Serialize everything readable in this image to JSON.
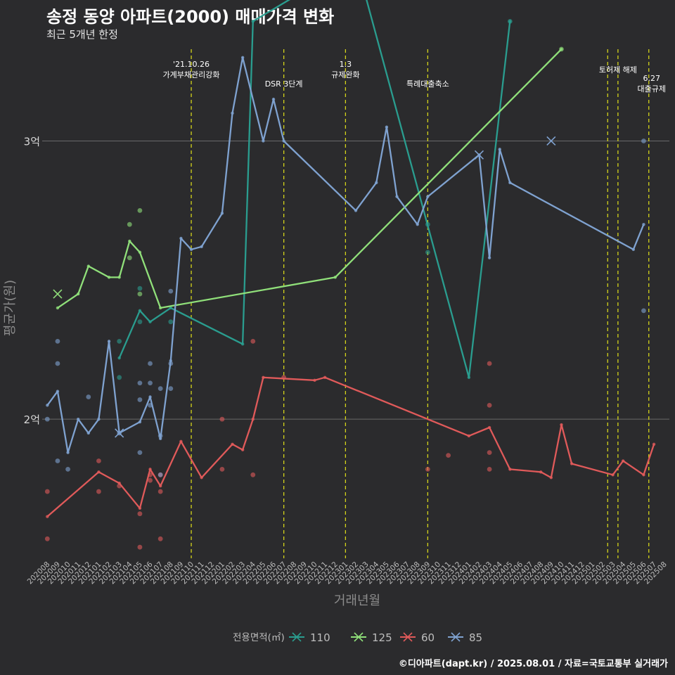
{
  "title": "송정 동양 아파트(2000) 매매가격 변화",
  "subtitle": "최근 5개년 한정",
  "footer": "©디아파트(dapt.kr) / 2025.08.01 / 자료=국토교통부 실거래가",
  "chart_data": {
    "type": "line",
    "xlabel": "거래년월",
    "ylabel": "평균가(원)",
    "y_unit": "원",
    "ylim": [
      150000000,
      335000000
    ],
    "yticks": [
      {
        "value": 200000000,
        "label": "2억"
      },
      {
        "value": 300000000,
        "label": "3억"
      }
    ],
    "grid": "horizontal",
    "months": [
      "202008",
      "202009",
      "202010",
      "202011",
      "202012",
      "202101",
      "202102",
      "202103",
      "202104",
      "202105",
      "202106",
      "202107",
      "202108",
      "202109",
      "202110",
      "202111",
      "202112",
      "202201",
      "202202",
      "202203",
      "202204",
      "202205",
      "202206",
      "202207",
      "202208",
      "202209",
      "202210",
      "202211",
      "202212",
      "202301",
      "202302",
      "202303",
      "202304",
      "202305",
      "202306",
      "202307",
      "202308",
      "202309",
      "202310",
      "202311",
      "202312",
      "202401",
      "202402",
      "202403",
      "202404",
      "202405",
      "202406",
      "202407",
      "202408",
      "202409",
      "202410",
      "202411",
      "202412",
      "202501",
      "202502",
      "202503",
      "202504",
      "202505",
      "202506",
      "202507",
      "202508"
    ],
    "events": [
      {
        "x": "202110",
        "label": [
          "'21.10.26",
          "가계부채관리강화"
        ]
      },
      {
        "x": "202207",
        "label": [
          "DSR 3단계"
        ]
      },
      {
        "x": "202301",
        "label": [
          "1.3",
          "규제완화"
        ]
      },
      {
        "x": "202309",
        "label": [
          "특례대출축소"
        ]
      },
      {
        "x": "202502.5",
        "label": []
      },
      {
        "x": "202503.5",
        "label": [
          "토허제 해제"
        ]
      },
      {
        "x": "202506.5",
        "label": [
          "6.27",
          "대출규제"
        ]
      }
    ],
    "legend": {
      "title": "전용면적(㎡)",
      "position": "bottom"
    },
    "series": [
      {
        "name": "110",
        "color": "#2a9d8f",
        "line": [
          [
            "202103",
            222000000
          ],
          [
            "202105",
            239000000
          ],
          [
            "202106",
            235000000
          ],
          [
            "202108",
            240000000
          ],
          [
            "202203",
            227000000
          ],
          [
            "202204",
            343000000
          ],
          [
            "202302",
            365000000
          ],
          [
            "202401",
            215000000
          ],
          [
            "202405",
            343000000
          ]
        ],
        "points": [
          [
            "202103",
            228000000
          ],
          [
            "202103",
            215000000
          ],
          [
            "202105",
            247000000
          ],
          [
            "202105",
            235000000
          ],
          [
            "202108",
            235000000
          ],
          [
            "202309",
            270000000
          ],
          [
            "202309",
            260000000
          ],
          [
            "202405",
            343000000
          ]
        ],
        "crosses": []
      },
      {
        "name": "125",
        "color": "#90e07a",
        "line": [
          [
            "202009",
            240000000
          ],
          [
            "202011",
            245000000
          ],
          [
            "202012",
            255000000
          ],
          [
            "202102",
            251000000
          ],
          [
            "202103",
            251000000
          ],
          [
            "202104",
            264000000
          ],
          [
            "202105",
            260000000
          ],
          [
            "202107",
            240000000
          ],
          [
            "202212",
            251000000
          ],
          [
            "202410",
            333000000
          ]
        ],
        "points": [
          [
            "202104",
            270000000
          ],
          [
            "202104",
            258000000
          ],
          [
            "202105",
            275000000
          ],
          [
            "202105",
            245000000
          ],
          [
            "202410",
            333000000
          ]
        ],
        "crosses": [
          [
            "202009",
            245000000
          ]
        ]
      },
      {
        "name": "60",
        "color": "#e05a5a",
        "line": [
          [
            "202008",
            165000000
          ],
          [
            "202101",
            181000000
          ],
          [
            "202103",
            177000000
          ],
          [
            "202105",
            168000000
          ],
          [
            "202106",
            182000000
          ],
          [
            "202107",
            176000000
          ],
          [
            "202109",
            192000000
          ],
          [
            "202111",
            179000000
          ],
          [
            "202202",
            191000000
          ],
          [
            "202203",
            189000000
          ],
          [
            "202204",
            200000000
          ],
          [
            "202205",
            215000000
          ],
          [
            "202210",
            214000000
          ],
          [
            "202211",
            215000000
          ],
          [
            "202401",
            194000000
          ],
          [
            "202403",
            197000000
          ],
          [
            "202405",
            182000000
          ],
          [
            "202408",
            181000000
          ],
          [
            "202409",
            179000000
          ],
          [
            "202410",
            198000000
          ],
          [
            "202411",
            184000000
          ],
          [
            "202503",
            180000000
          ],
          [
            "202504",
            185000000
          ],
          [
            "202506",
            180000000
          ],
          [
            "202507",
            191000000
          ]
        ],
        "points": [
          [
            "202008",
            174000000
          ],
          [
            "202008",
            157000000
          ],
          [
            "202101",
            185000000
          ],
          [
            "202101",
            174000000
          ],
          [
            "202103",
            176000000
          ],
          [
            "202105",
            166000000
          ],
          [
            "202105",
            154000000
          ],
          [
            "202106",
            180000000
          ],
          [
            "202106",
            178000000
          ],
          [
            "202107",
            180000000
          ],
          [
            "202107",
            174000000
          ],
          [
            "202107",
            157000000
          ],
          [
            "202201",
            200000000
          ],
          [
            "202201",
            182000000
          ],
          [
            "202204",
            228000000
          ],
          [
            "202204",
            180000000
          ],
          [
            "202207",
            215000000
          ],
          [
            "202309",
            182000000
          ],
          [
            "202311",
            187000000
          ],
          [
            "202403",
            220000000
          ],
          [
            "202403",
            205000000
          ],
          [
            "202403",
            188000000
          ],
          [
            "202403",
            182000000
          ]
        ],
        "crosses": []
      },
      {
        "name": "85",
        "color": "#7fa2d0",
        "line": [
          [
            "202008",
            205000000
          ],
          [
            "202009",
            210000000
          ],
          [
            "202010",
            188000000
          ],
          [
            "202011",
            200000000
          ],
          [
            "202012",
            195000000
          ],
          [
            "202101",
            200000000
          ],
          [
            "202102",
            228000000
          ],
          [
            "202103",
            195000000
          ],
          [
            "202105",
            199000000
          ],
          [
            "202106",
            208000000
          ],
          [
            "202107",
            193000000
          ],
          [
            "202108",
            221000000
          ],
          [
            "202109",
            265000000
          ],
          [
            "202110",
            261000000
          ],
          [
            "202111",
            262000000
          ],
          [
            "202201",
            274000000
          ],
          [
            "202202",
            310000000
          ],
          [
            "202203",
            330000000
          ],
          [
            "202205",
            300000000
          ],
          [
            "202206",
            315000000
          ],
          [
            "202207",
            300000000
          ],
          [
            "202302",
            275000000
          ],
          [
            "202304",
            285000000
          ],
          [
            "202305",
            305000000
          ],
          [
            "202306",
            280000000
          ],
          [
            "202308",
            270000000
          ],
          [
            "202309",
            280000000
          ],
          [
            "202402",
            295000000
          ],
          [
            "202403",
            258000000
          ],
          [
            "202404",
            297000000
          ],
          [
            "202405",
            285000000
          ],
          [
            "202505",
            261000000
          ],
          [
            "202506",
            270000000
          ]
        ],
        "points": [
          [
            "202008",
            200000000
          ],
          [
            "202009",
            228000000
          ],
          [
            "202009",
            220000000
          ],
          [
            "202009",
            185000000
          ],
          [
            "202010",
            182000000
          ],
          [
            "202012",
            208000000
          ],
          [
            "202103",
            195000000
          ],
          [
            "202105",
            213000000
          ],
          [
            "202105",
            207000000
          ],
          [
            "202105",
            188000000
          ],
          [
            "202106",
            220000000
          ],
          [
            "202106",
            213000000
          ],
          [
            "202106",
            205000000
          ],
          [
            "202107",
            211000000
          ],
          [
            "202107",
            194000000
          ],
          [
            "202107",
            180000000
          ],
          [
            "202108",
            246000000
          ],
          [
            "202108",
            220000000
          ],
          [
            "202108",
            211000000
          ],
          [
            "202506",
            300000000
          ],
          [
            "202506",
            239000000
          ]
        ],
        "crosses": [
          [
            "202103",
            195000000
          ],
          [
            "202402",
            295000000
          ],
          [
            "202409",
            300000000
          ]
        ]
      }
    ]
  }
}
